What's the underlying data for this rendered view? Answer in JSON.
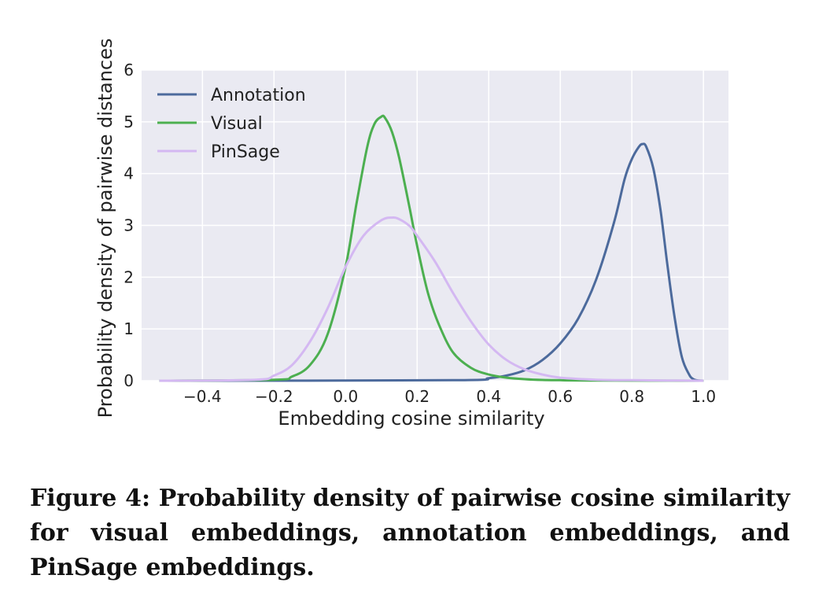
{
  "caption": "Figure 4: Probability density of pairwise cosine similarity for visual embeddings, annotation embeddings, and PinSage embeddings.",
  "chart_data": {
    "type": "line",
    "xlabel": "Embedding cosine similarity",
    "ylabel": "Probability density of pairwise distances",
    "xlim": [
      -0.57,
      1.07
    ],
    "ylim": [
      0,
      6
    ],
    "xticks": [
      -0.4,
      -0.2,
      0.0,
      0.2,
      0.4,
      0.6,
      0.8,
      1.0
    ],
    "xtick_labels": [
      "−0.4",
      "−0.2",
      "0.0",
      "0.2",
      "0.4",
      "0.6",
      "0.8",
      "1.0"
    ],
    "yticks": [
      0,
      1,
      2,
      3,
      4,
      5,
      6
    ],
    "ytick_labels": [
      "0",
      "1",
      "2",
      "3",
      "4",
      "5",
      "6"
    ],
    "grid": true,
    "legend_position": "top-left",
    "background": "#eaeaf2",
    "series": [
      {
        "name": "Annotation",
        "color": "#4c6a9c",
        "x": [
          -0.52,
          0.3,
          0.4,
          0.45,
          0.5,
          0.55,
          0.6,
          0.65,
          0.7,
          0.75,
          0.78,
          0.8,
          0.82,
          0.83,
          0.84,
          0.86,
          0.88,
          0.9,
          0.92,
          0.94,
          0.96,
          0.97,
          0.98,
          1.0
        ],
        "y": [
          0,
          0.01,
          0.05,
          0.1,
          0.2,
          0.4,
          0.72,
          1.2,
          1.95,
          3.05,
          3.9,
          4.28,
          4.52,
          4.57,
          4.52,
          4.1,
          3.3,
          2.2,
          1.2,
          0.45,
          0.12,
          0.04,
          0.01,
          0
        ]
      },
      {
        "name": "Visual",
        "color": "#4caf50",
        "x": [
          -0.52,
          -0.2,
          -0.15,
          -0.1,
          -0.05,
          0.0,
          0.03,
          0.06,
          0.08,
          0.1,
          0.11,
          0.13,
          0.15,
          0.18,
          0.2,
          0.23,
          0.26,
          0.3,
          0.35,
          0.4,
          0.45,
          0.5,
          0.55,
          0.6,
          0.7,
          1.0
        ],
        "y": [
          0,
          0.02,
          0.08,
          0.3,
          0.9,
          2.2,
          3.4,
          4.5,
          4.95,
          5.1,
          5.08,
          4.8,
          4.3,
          3.3,
          2.6,
          1.7,
          1.1,
          0.55,
          0.25,
          0.12,
          0.06,
          0.03,
          0.015,
          0.01,
          0.005,
          0
        ]
      },
      {
        "name": "PinSage",
        "color": "#d4b8f2",
        "x": [
          -0.52,
          -0.25,
          -0.2,
          -0.15,
          -0.1,
          -0.05,
          0.0,
          0.05,
          0.1,
          0.13,
          0.15,
          0.18,
          0.2,
          0.25,
          0.3,
          0.35,
          0.4,
          0.45,
          0.5,
          0.55,
          0.6,
          0.7,
          0.8,
          0.9,
          1.0
        ],
        "y": [
          0,
          0.02,
          0.1,
          0.3,
          0.75,
          1.4,
          2.2,
          2.8,
          3.1,
          3.15,
          3.12,
          2.98,
          2.8,
          2.3,
          1.7,
          1.15,
          0.7,
          0.4,
          0.22,
          0.12,
          0.06,
          0.02,
          0.01,
          0.005,
          0
        ]
      }
    ]
  }
}
